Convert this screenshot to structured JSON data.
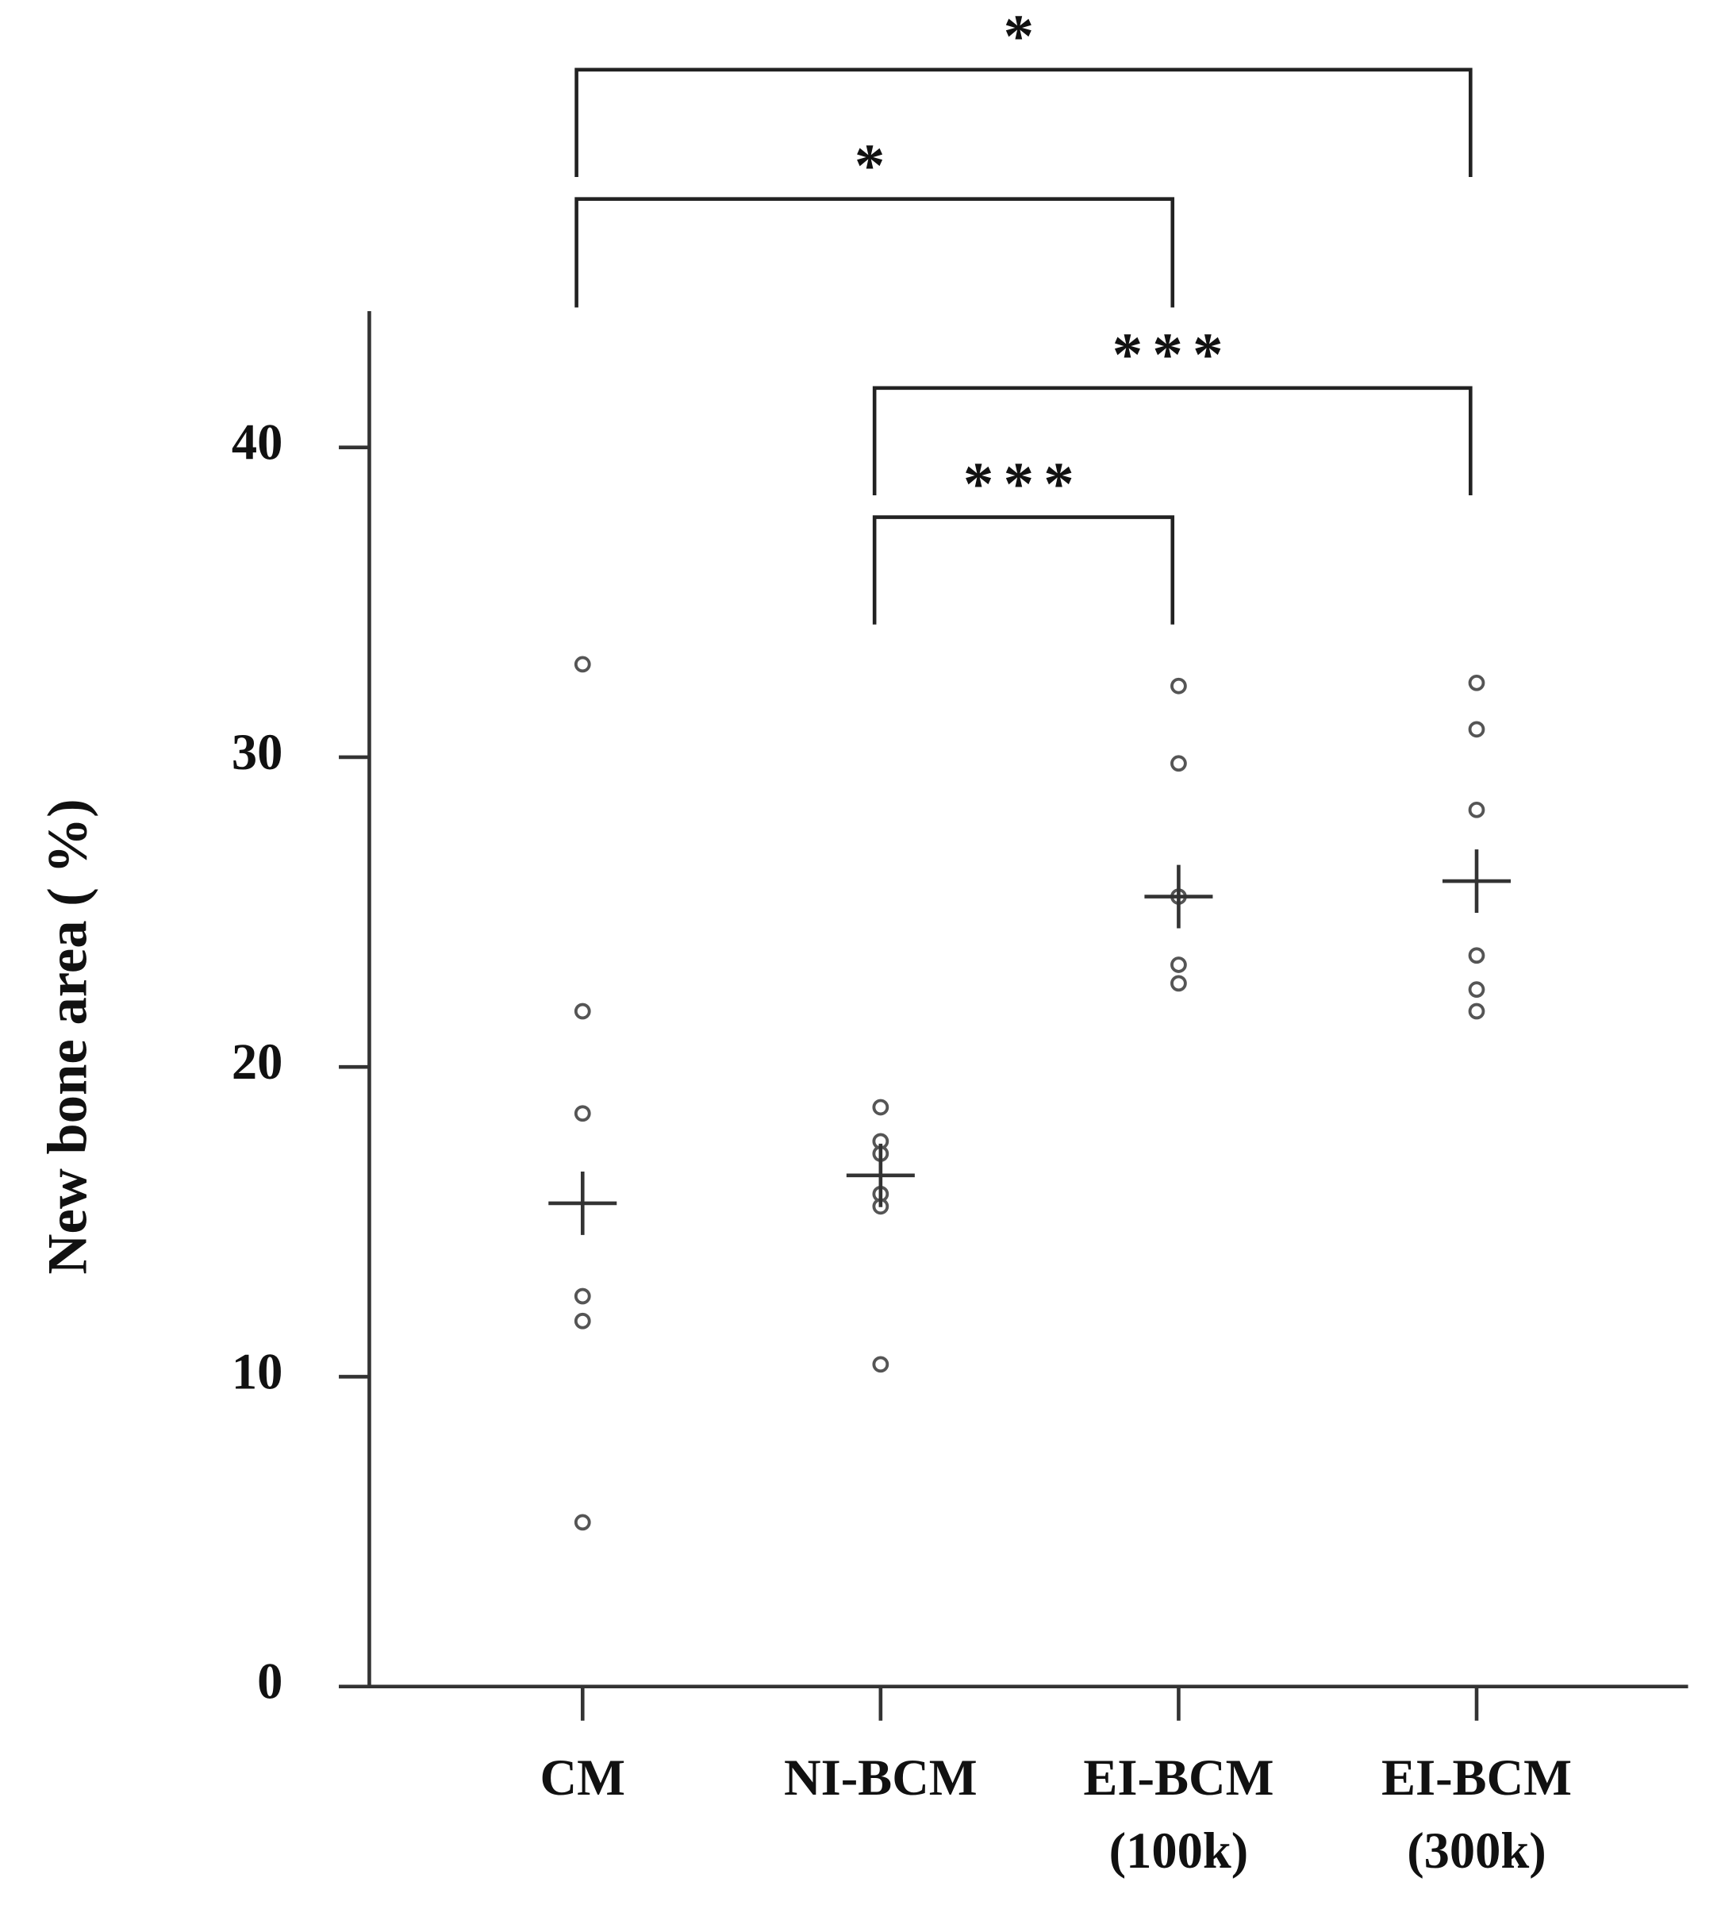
{
  "chart_data": {
    "type": "dot",
    "y_label": "New bone area ( %)",
    "categories": [
      [
        "CM"
      ],
      [
        "NI-BCM"
      ],
      [
        "EI-BCM",
        "(100k)"
      ],
      [
        "EI-BCM",
        "(300k)"
      ]
    ],
    "points": [
      [
        33.0,
        21.8,
        18.5,
        12.6,
        11.8,
        5.3
      ],
      [
        18.7,
        17.6,
        17.2,
        15.9,
        15.5,
        10.4
      ],
      [
        32.3,
        29.8,
        25.5,
        23.3,
        22.7
      ],
      [
        32.4,
        30.9,
        28.3,
        23.6,
        22.5,
        21.8
      ]
    ],
    "means": [
      15.6,
      16.5,
      25.5,
      26.0
    ],
    "ylim": [
      0,
      44.4
    ],
    "yticks": [
      0,
      10,
      20,
      30,
      40
    ],
    "comparisons": [
      {
        "groups": [
          0,
          3
        ],
        "label": "*"
      },
      {
        "groups": [
          0,
          2
        ],
        "label": "*"
      },
      {
        "groups": [
          1,
          3
        ],
        "label": "***"
      },
      {
        "groups": [
          1,
          2
        ],
        "label": "***"
      }
    ]
  }
}
